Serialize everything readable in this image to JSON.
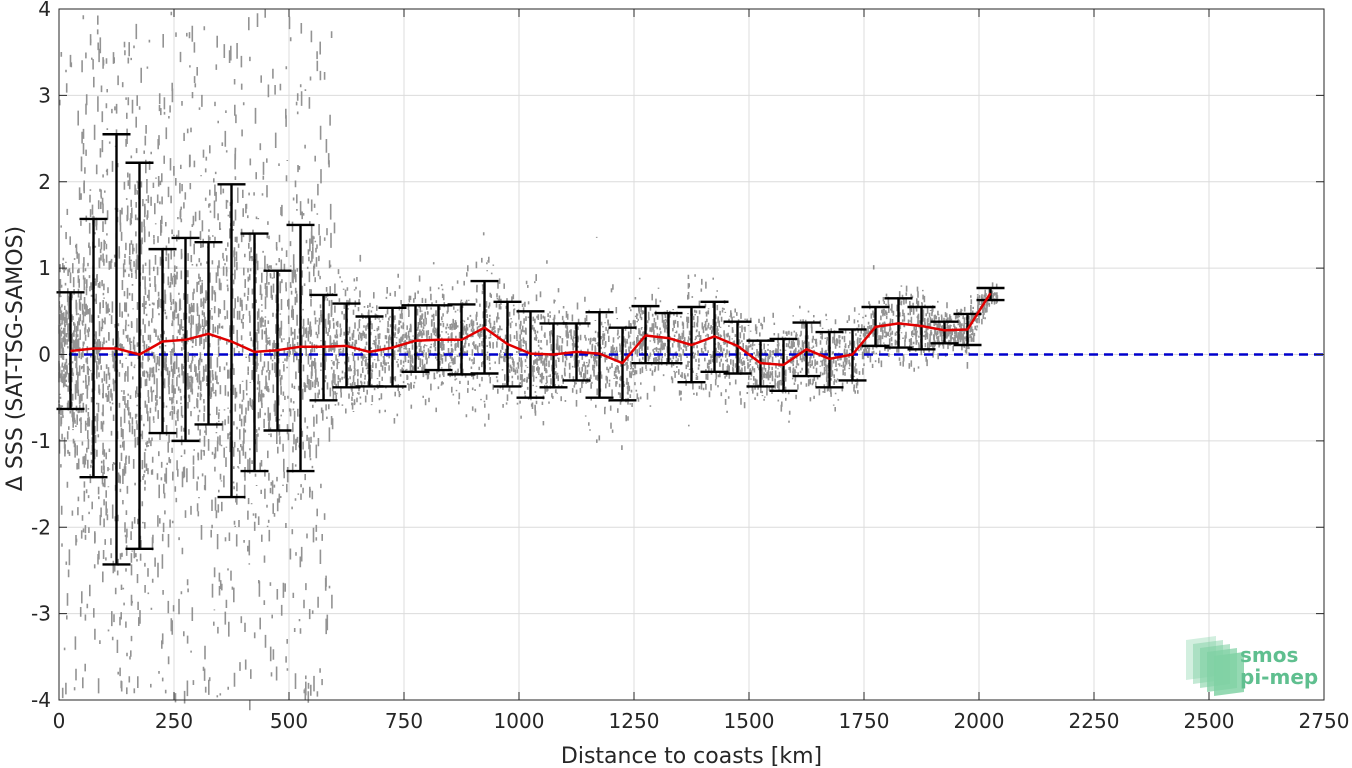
{
  "chart_data": {
    "type": "scatter",
    "title": "",
    "xlabel": "Distance to coasts [km]",
    "ylabel": "Δ SSS (SAT-TSG-SAMOS)",
    "xlim": [
      0,
      2750
    ],
    "ylim": [
      -4,
      4
    ],
    "xticks": [
      0,
      250,
      500,
      750,
      1000,
      1250,
      1500,
      1750,
      2000,
      2250,
      2500,
      2750
    ],
    "yticks": [
      -4,
      -3,
      -2,
      -1,
      0,
      1,
      2,
      3,
      4
    ],
    "grid": true,
    "legend": "none",
    "reference_line": {
      "y": 0,
      "color": "#0000cc",
      "style": "dashed"
    },
    "series": [
      {
        "type": "errorbar",
        "color": "#000000",
        "x": [
          25,
          75,
          125,
          175,
          225,
          275,
          325,
          375,
          425,
          475,
          525,
          575,
          625,
          675,
          725,
          775,
          825,
          875,
          925,
          975,
          1025,
          1075,
          1125,
          1175,
          1225,
          1275,
          1325,
          1375,
          1425,
          1475,
          1525,
          1575,
          1625,
          1675,
          1725,
          1775,
          1825,
          1875,
          1925,
          1975,
          2025
        ],
        "mean": [
          0.04,
          0.07,
          0.07,
          0.0,
          0.15,
          0.17,
          0.24,
          0.15,
          0.03,
          0.05,
          0.09,
          0.09,
          0.1,
          0.03,
          0.08,
          0.16,
          0.17,
          0.17,
          0.31,
          0.12,
          0.01,
          0.0,
          0.03,
          0.01,
          -0.1,
          0.22,
          0.19,
          0.11,
          0.21,
          0.1,
          -0.1,
          -0.12,
          0.06,
          -0.05,
          0.0,
          0.32,
          0.36,
          0.33,
          0.28,
          0.29,
          0.71
        ],
        "upper": [
          0.72,
          1.57,
          2.55,
          2.22,
          1.22,
          1.35,
          1.3,
          1.97,
          1.4,
          0.97,
          1.5,
          0.69,
          0.59,
          0.44,
          0.54,
          0.57,
          0.57,
          0.58,
          0.85,
          0.61,
          0.5,
          0.36,
          0.36,
          0.49,
          0.31,
          0.56,
          0.48,
          0.55,
          0.61,
          0.38,
          0.16,
          0.18,
          0.37,
          0.26,
          0.29,
          0.55,
          0.65,
          0.55,
          0.38,
          0.47,
          0.77
        ],
        "lower": [
          -0.63,
          -1.42,
          -2.43,
          -2.25,
          -0.91,
          -1.0,
          -0.81,
          -1.65,
          -1.35,
          -0.88,
          -1.35,
          -0.53,
          -0.38,
          -0.37,
          -0.37,
          -0.2,
          -0.18,
          -0.23,
          -0.22,
          -0.37,
          -0.5,
          -0.38,
          -0.3,
          -0.5,
          -0.53,
          -0.1,
          -0.1,
          -0.32,
          -0.2,
          -0.22,
          -0.37,
          -0.42,
          -0.25,
          -0.38,
          -0.3,
          0.1,
          0.08,
          0.06,
          0.13,
          0.11,
          0.63
        ]
      },
      {
        "type": "line",
        "color": "#e00000",
        "x": [
          25,
          75,
          125,
          175,
          225,
          275,
          325,
          375,
          425,
          475,
          525,
          575,
          625,
          675,
          725,
          775,
          825,
          875,
          925,
          975,
          1025,
          1075,
          1125,
          1175,
          1225,
          1275,
          1325,
          1375,
          1425,
          1475,
          1525,
          1575,
          1625,
          1675,
          1725,
          1775,
          1825,
          1875,
          1925,
          1975,
          2025
        ],
        "y": [
          0.04,
          0.07,
          0.07,
          0.0,
          0.15,
          0.17,
          0.24,
          0.15,
          0.03,
          0.05,
          0.09,
          0.09,
          0.1,
          0.03,
          0.08,
          0.16,
          0.17,
          0.17,
          0.31,
          0.12,
          0.01,
          0.0,
          0.03,
          0.01,
          -0.1,
          0.22,
          0.19,
          0.11,
          0.21,
          0.1,
          -0.1,
          -0.12,
          0.06,
          -0.05,
          0.0,
          0.32,
          0.36,
          0.33,
          0.28,
          0.29,
          0.71
        ]
      },
      {
        "type": "scatter",
        "color": "#808080",
        "description_density": "dense grey point cloud of individual differences"
      }
    ]
  },
  "logo": {
    "line1": "smos",
    "line2": "pi-mep",
    "color_text": "#5fbf8f",
    "color_shape": "#7fd1a4"
  }
}
